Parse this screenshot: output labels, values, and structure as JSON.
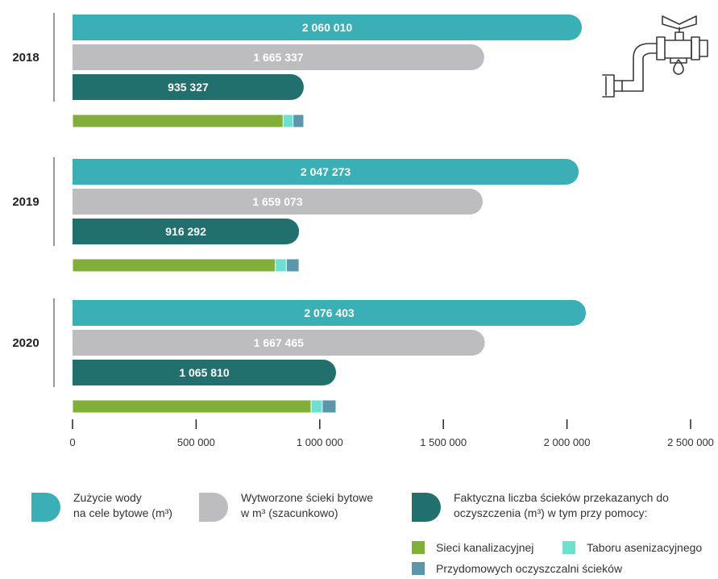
{
  "colors": {
    "water": "#3aafb5",
    "generated": "#bdbdbf",
    "actual": "#22706e",
    "sewer": "#82ae3a",
    "tanker": "#6fdfcf",
    "household": "#5b96ab"
  },
  "chart_data": {
    "type": "bar",
    "orientation": "horizontal",
    "xlim": [
      0,
      2500000
    ],
    "x_ticks": [
      "0",
      "500 000",
      "1 000 000",
      "1 500 000",
      "2 000 000",
      "2 500 000"
    ],
    "x_tick_values": [
      0,
      500000,
      1000000,
      1500000,
      2000000,
      2500000
    ],
    "groups": [
      {
        "year": "2018",
        "water": 2060010,
        "water_label": "2 060 010",
        "generated": 1665337,
        "generated_label": "1 665 337",
        "actual": 935327,
        "actual_label": "935 327",
        "breakdown": {
          "sewer": 852000,
          "tanker": 40000,
          "household": 43327
        }
      },
      {
        "year": "2019",
        "water": 2047273,
        "water_label": "2 047 273",
        "generated": 1659073,
        "generated_label": "1 659 073",
        "actual": 916292,
        "actual_label": "916 292",
        "breakdown": {
          "sewer": 820000,
          "tanker": 45000,
          "household": 51292
        }
      },
      {
        "year": "2020",
        "water": 2076403,
        "water_label": "2 076 403",
        "generated": 1667465,
        "generated_label": "1 667 465",
        "actual": 1065810,
        "actual_label": "1 065 810",
        "breakdown": {
          "sewer": 965000,
          "tanker": 45000,
          "household": 55810
        }
      }
    ]
  },
  "legend": {
    "water": "Zużycie wody\nna cele bytowe (m³)",
    "generated": "Wytworzone ścieki bytowe\nw m³ (szacunkowo)",
    "actual": "Faktyczna liczba ścieków przekazanych do\noczyszczenia (m³) w tym przy pomocy:",
    "sewer": "Sieci kanalizacyjnej",
    "tanker": "Taboru asenizacyjnego",
    "household": "Przydomowych oczyszczalni ścieków"
  },
  "icon": "water-tap-icon"
}
